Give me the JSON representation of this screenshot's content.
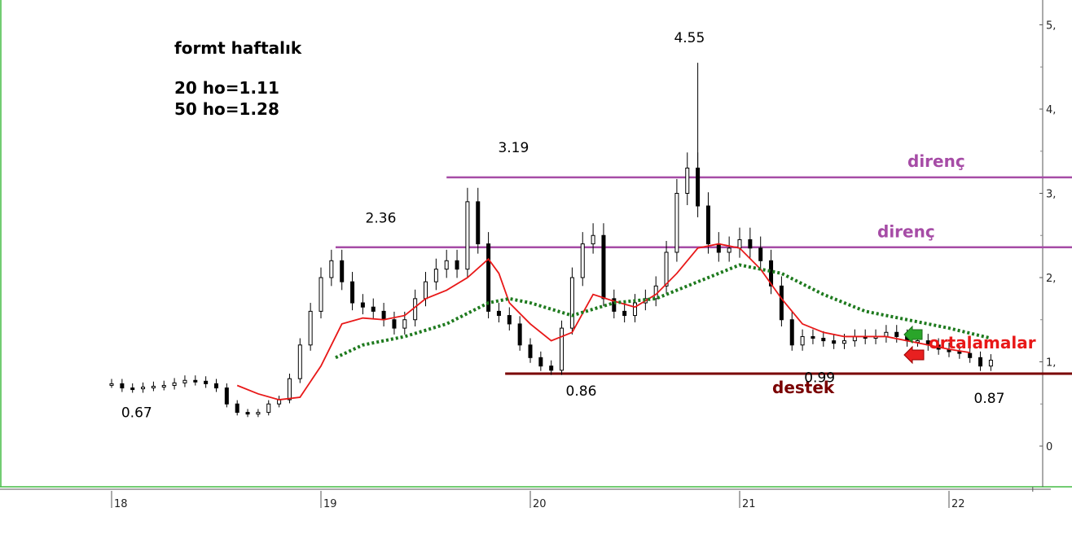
{
  "chart_data": {
    "type": "candlestick",
    "title": "formt haftalık",
    "subtitle_lines": [
      "20 ho=1.11",
      "50 ho=1.28"
    ],
    "x_ticks": [
      "18",
      "19",
      "20",
      "21",
      "22"
    ],
    "y_ticks": [
      "0",
      "1,",
      "2,",
      "3,",
      "4,",
      "5,"
    ],
    "ylim": [
      0,
      5.2
    ],
    "grid": false,
    "colors": {
      "candle": "#000000",
      "ma20": "#e81818",
      "ma50": "#1e7a1e",
      "resistance": "#a64ca6",
      "support": "#7a0000",
      "frame": "#44bb44"
    },
    "annotations": [
      {
        "text": "0.67",
        "x": 18.05,
        "y": 0.67
      },
      {
        "text": "2.36",
        "x": 19.22,
        "y": 2.36
      },
      {
        "text": "3.19",
        "x": 19.85,
        "y": 3.19
      },
      {
        "text": "0.86",
        "x": 20.22,
        "y": 0.86
      },
      {
        "text": "4.55",
        "x": 20.78,
        "y": 4.55
      },
      {
        "text": "0.99",
        "x": 21.32,
        "y": 0.99
      },
      {
        "text": "0.87",
        "x": 22.15,
        "y": 0.87
      }
    ],
    "levels": [
      {
        "label": "direnç",
        "type": "resistance",
        "y": 3.19,
        "x_start": 19.6,
        "x_end": 22.8
      },
      {
        "label": "direnç",
        "type": "resistance",
        "y": 2.36,
        "x_start": 19.07,
        "x_end": 22.8
      },
      {
        "label": "destek",
        "type": "support",
        "y": 0.86,
        "x_start": 19.88,
        "x_end": 22.6
      }
    ],
    "legend_note": "ortalamalar",
    "series": [
      {
        "name": "price",
        "x": [
          18.0,
          18.05,
          18.1,
          18.15,
          18.2,
          18.25,
          18.3,
          18.35,
          18.4,
          18.45,
          18.5,
          18.55,
          18.6,
          18.65,
          18.7,
          18.75,
          18.8,
          18.85,
          18.9,
          18.95,
          19.0,
          19.05,
          19.1,
          19.15,
          19.2,
          19.25,
          19.3,
          19.35,
          19.4,
          19.45,
          19.5,
          19.55,
          19.6,
          19.65,
          19.7,
          19.75,
          19.8,
          19.85,
          19.9,
          19.95,
          20.0,
          20.05,
          20.1,
          20.15,
          20.2,
          20.25,
          20.3,
          20.35,
          20.4,
          20.45,
          20.5,
          20.55,
          20.6,
          20.65,
          20.7,
          20.75,
          20.8,
          20.85,
          20.9,
          20.95,
          21.0,
          21.05,
          21.1,
          21.15,
          21.2,
          21.25,
          21.3,
          21.35,
          21.4,
          21.45,
          21.5,
          21.55,
          21.6,
          21.65,
          21.7,
          21.75,
          21.8,
          21.85,
          21.9,
          21.95,
          22.0,
          22.05,
          22.1,
          22.15,
          22.2
        ],
        "y": [
          0.74,
          0.69,
          0.68,
          0.7,
          0.71,
          0.72,
          0.75,
          0.78,
          0.77,
          0.74,
          0.69,
          0.5,
          0.4,
          0.38,
          0.4,
          0.5,
          0.55,
          0.8,
          1.2,
          1.6,
          2.0,
          2.2,
          1.95,
          1.7,
          1.65,
          1.6,
          1.5,
          1.4,
          1.5,
          1.75,
          1.95,
          2.1,
          2.2,
          2.1,
          2.9,
          2.4,
          1.6,
          1.55,
          1.45,
          1.2,
          1.05,
          0.95,
          0.9,
          1.4,
          2.0,
          2.4,
          2.5,
          1.75,
          1.6,
          1.55,
          1.7,
          1.75,
          1.9,
          2.3,
          3.0,
          3.3,
          2.85,
          2.4,
          2.3,
          2.35,
          2.45,
          2.35,
          2.2,
          1.9,
          1.5,
          1.2,
          1.3,
          1.28,
          1.25,
          1.22,
          1.25,
          1.3,
          1.28,
          1.3,
          1.35,
          1.3,
          1.25,
          1.25,
          1.2,
          1.15,
          1.12,
          1.1,
          1.05,
          0.95,
          1.02
        ]
      },
      {
        "name": "20 ho",
        "x": [
          18.6,
          18.7,
          18.8,
          18.9,
          19.0,
          19.1,
          19.2,
          19.3,
          19.4,
          19.5,
          19.6,
          19.7,
          19.8,
          19.85,
          19.9,
          20.0,
          20.1,
          20.2,
          20.3,
          20.4,
          20.5,
          20.6,
          20.7,
          20.8,
          20.9,
          21.0,
          21.1,
          21.2,
          21.3,
          21.4,
          21.5,
          21.6,
          21.7,
          21.8,
          21.9,
          22.0,
          22.1
        ],
        "y": [
          0.72,
          0.62,
          0.55,
          0.58,
          0.95,
          1.45,
          1.52,
          1.5,
          1.55,
          1.75,
          1.85,
          2.0,
          2.22,
          2.05,
          1.7,
          1.45,
          1.25,
          1.35,
          1.8,
          1.72,
          1.65,
          1.8,
          2.05,
          2.35,
          2.4,
          2.35,
          2.1,
          1.75,
          1.45,
          1.35,
          1.3,
          1.3,
          1.3,
          1.25,
          1.2,
          1.15,
          1.11
        ]
      },
      {
        "name": "50 ho",
        "x": [
          19.07,
          19.2,
          19.4,
          19.6,
          19.8,
          19.9,
          20.0,
          20.2,
          20.4,
          20.6,
          20.8,
          21.0,
          21.2,
          21.4,
          21.6,
          21.8,
          22.0,
          22.2
        ],
        "y": [
          1.05,
          1.2,
          1.3,
          1.45,
          1.7,
          1.75,
          1.7,
          1.55,
          1.7,
          1.75,
          1.95,
          2.15,
          2.05,
          1.8,
          1.6,
          1.5,
          1.4,
          1.28
        ]
      }
    ]
  }
}
